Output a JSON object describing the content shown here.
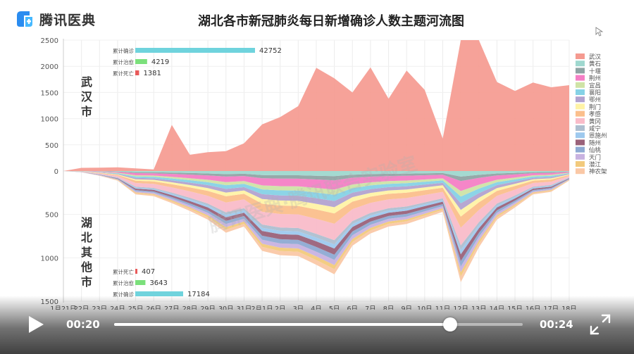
{
  "header": {
    "logo_text": "腾讯医典",
    "title": "湖北各市新冠肺炎每日新增确诊人数主题河流图"
  },
  "labels": {
    "wuhan": [
      "武",
      "汉",
      "市"
    ],
    "others": [
      "湖",
      "北",
      "其",
      "他",
      "市"
    ]
  },
  "watermark": "腾讯医典·腾讯联合实验室",
  "player": {
    "current_time": "00:20",
    "total_time": "00:24",
    "progress": 0.823
  },
  "chart_data": {
    "type": "area",
    "x": [
      "1月21日",
      "22日",
      "23日",
      "24日",
      "25日",
      "26日",
      "27日",
      "28日",
      "29日",
      "30日",
      "31日",
      "2月1日",
      "2日",
      "3日",
      "4日",
      "5日",
      "6日",
      "7日",
      "8日",
      "9日",
      "10日",
      "11日",
      "12日",
      "13日",
      "14日",
      "15日",
      "16日",
      "17日",
      "18日"
    ],
    "ylim_upper": [
      0,
      2500
    ],
    "ylim_lower": [
      0,
      1500
    ],
    "yticks_upper": [
      "2500",
      "2000",
      "1500",
      "1000",
      "500",
      "0"
    ],
    "yticks_lower": [
      "500",
      "1000",
      "1500"
    ],
    "wuhan": {
      "name": "武汉",
      "values": [
        0,
        60,
        65,
        70,
        50,
        30,
        880,
        310,
        360,
        380,
        530,
        890,
        1030,
        1240,
        1970,
        1770,
        1500,
        1980,
        1380,
        1920,
        1550,
        620,
        3000,
        3000,
        1700,
        1530,
        1690,
        1600,
        1640
      ]
    },
    "others_total": [
      0,
      15,
      55,
      110,
      270,
      290,
      370,
      460,
      560,
      710,
      640,
      920,
      970,
      980,
      1080,
      1190,
      860,
      720,
      640,
      610,
      540,
      470,
      1280,
      880,
      560,
      420,
      270,
      240,
      110
    ],
    "series": [
      {
        "name": "武汉",
        "color": "#f59a90"
      },
      {
        "name": "黄石",
        "color": "#9fd8cf"
      },
      {
        "name": "十堰",
        "color": "#8fa4a4"
      },
      {
        "name": "荆州",
        "color": "#f47fc5"
      },
      {
        "name": "宜昌",
        "color": "#cfe3a6"
      },
      {
        "name": "襄阳",
        "color": "#86d2e6"
      },
      {
        "name": "鄂州",
        "color": "#b2a3d0"
      },
      {
        "name": "荆门",
        "color": "#fff3a6"
      },
      {
        "name": "孝感",
        "color": "#fbbf8c"
      },
      {
        "name": "黄冈",
        "color": "#f9bcc9"
      },
      {
        "name": "咸宁",
        "color": "#aebfd0"
      },
      {
        "name": "恩施州",
        "color": "#9ec9ee"
      },
      {
        "name": "随州",
        "color": "#9a627a"
      },
      {
        "name": "仙桃",
        "color": "#8eaad3"
      },
      {
        "name": "天门",
        "color": "#c8b2e0"
      },
      {
        "name": "潜江",
        "color": "#f2ca7c"
      },
      {
        "name": "神农架",
        "color": "#fac8a6"
      }
    ],
    "annotations_upper": [
      {
        "label": "累计确诊",
        "value": "42752",
        "color": "#6fd3dd",
        "ratio": 1.0
      },
      {
        "label": "累计治愈",
        "value": "4219",
        "color": "#7be07b",
        "ratio": 0.099
      },
      {
        "label": "累计死亡",
        "value": "1381",
        "color": "#e85a5a",
        "ratio": 0.032
      }
    ],
    "annotations_lower": [
      {
        "label": "累计死亡",
        "value": "407",
        "color": "#e85a5a",
        "ratio": 0.024
      },
      {
        "label": "累计治愈",
        "value": "3643",
        "color": "#7be07b",
        "ratio": 0.212
      },
      {
        "label": "累计确诊",
        "value": "17184",
        "color": "#6fd3dd",
        "ratio": 1.0
      }
    ]
  }
}
